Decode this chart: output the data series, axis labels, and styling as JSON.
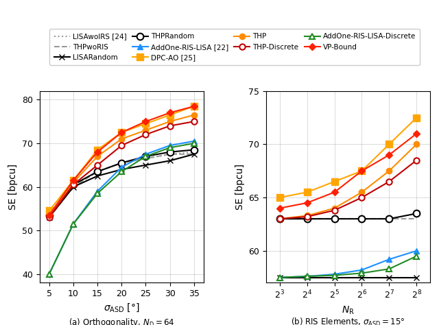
{
  "left_x": [
    5,
    10,
    15,
    20,
    25,
    30,
    35
  ],
  "left_LISAwoIRS": [
    53.0,
    60.0,
    63.5,
    65.5,
    66.5,
    67.5,
    68.0
  ],
  "left_THPwoRIS": [
    53.0,
    60.0,
    63.5,
    65.5,
    66.5,
    67.5,
    67.5
  ],
  "left_LISARandom": [
    53.0,
    60.0,
    62.5,
    64.0,
    65.0,
    66.0,
    67.5
  ],
  "left_THPRandom": [
    53.5,
    60.5,
    63.5,
    65.5,
    67.0,
    68.0,
    68.5
  ],
  "left_AddOne_LISA": [
    40.0,
    51.5,
    59.0,
    64.5,
    67.5,
    69.5,
    70.5
  ],
  "left_DPC_AO": [
    54.5,
    61.5,
    68.5,
    72.5,
    74.5,
    76.5,
    78.5
  ],
  "left_THP": [
    53.5,
    61.0,
    67.0,
    71.0,
    73.0,
    75.0,
    76.5
  ],
  "left_THP_Discrete": [
    53.0,
    60.5,
    65.0,
    69.5,
    72.0,
    74.0,
    75.0
  ],
  "left_AddOne_LISA_Discrete": [
    40.0,
    51.5,
    58.5,
    63.5,
    67.0,
    69.0,
    70.0
  ],
  "left_VP_Bound": [
    53.5,
    61.5,
    68.0,
    72.5,
    75.0,
    77.0,
    78.5
  ],
  "right_x_idx": [
    0,
    1,
    2,
    3,
    4,
    5
  ],
  "right_LISAwoIRS": [
    57.5,
    57.5,
    57.5,
    57.5,
    57.5,
    57.5
  ],
  "right_THPwoRIS": [
    63.0,
    63.0,
    63.0,
    63.0,
    63.0,
    63.0
  ],
  "right_LISARandom": [
    57.5,
    57.5,
    57.5,
    57.5,
    57.5,
    57.5
  ],
  "right_THPRandom": [
    63.0,
    63.0,
    63.0,
    63.0,
    63.0,
    63.5
  ],
  "right_AddOne_LISA": [
    57.5,
    57.6,
    57.8,
    58.2,
    59.2,
    60.0
  ],
  "right_DPC_AO": [
    65.0,
    65.5,
    66.5,
    67.5,
    70.0,
    72.5
  ],
  "right_THP": [
    63.0,
    63.3,
    64.0,
    65.5,
    67.5,
    70.0
  ],
  "right_THP_Discrete": [
    63.0,
    63.2,
    63.8,
    65.0,
    66.5,
    68.5
  ],
  "right_AddOne_LISA_Discrete": [
    57.5,
    57.6,
    57.7,
    57.9,
    58.3,
    59.5
  ],
  "right_VP_Bound": [
    64.0,
    64.5,
    65.5,
    67.5,
    69.0,
    71.0
  ],
  "color_LISAwoIRS": "#999999",
  "color_THPwoRIS": "#999999",
  "color_LISARandom": "#000000",
  "color_THPRandom": "#000000",
  "color_AddOne_LISA": "#1E90FF",
  "color_DPC_AO": "#FFA500",
  "color_THP": "#FF8C00",
  "color_THP_Discrete": "#C00000",
  "color_AddOne_LISA_Discrete": "#228B22",
  "color_VP_Bound": "#FF2000",
  "left_xlabel": "$\\sigma_{\\mathrm{ASD}}$ [°]",
  "right_xlabel": "$N_{\\mathrm{R}}$",
  "ylabel": "SE [bpcu]",
  "left_title": "(a) Orthogonality, $N_{\\mathrm{D}} = 64$",
  "right_title": "(b) RIS Elements, $\\sigma_{\\mathrm{ASD}} = 15°$",
  "left_xlim": [
    3,
    37
  ],
  "left_ylim": [
    38,
    82
  ],
  "left_xticks": [
    5,
    10,
    15,
    20,
    25,
    30,
    35
  ],
  "left_yticks": [
    40,
    50,
    60,
    70,
    80
  ],
  "right_ylim": [
    57,
    75
  ],
  "right_yticks": [
    60,
    65,
    70,
    75
  ]
}
